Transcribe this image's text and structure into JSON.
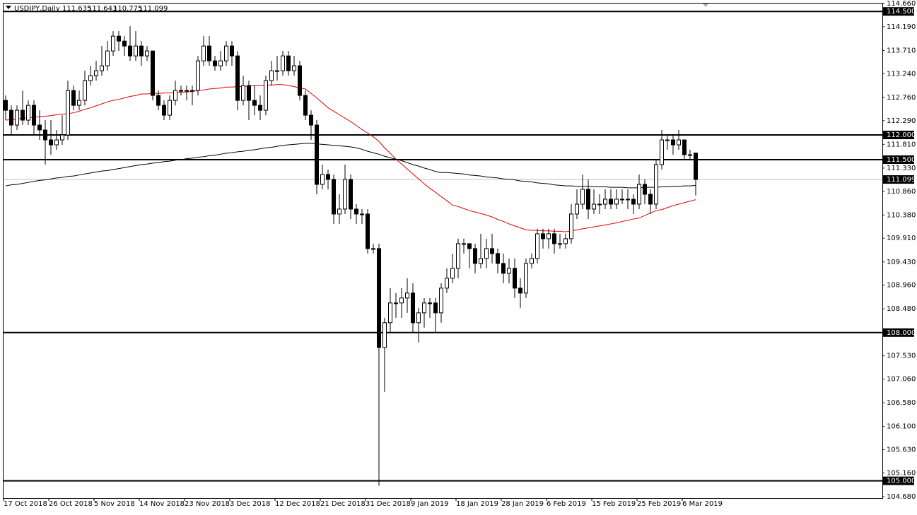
{
  "chart_data": {
    "type": "candlestick",
    "title": "USDJPY,Daily",
    "ylim": [
      104.68,
      114.66
    ],
    "yticks": [
      {
        "value": 114.66,
        "label": "114.660"
      },
      {
        "value": 114.19,
        "label": "114.190"
      },
      {
        "value": 113.71,
        "label": "113.710"
      },
      {
        "value": 113.24,
        "label": "113.240"
      },
      {
        "value": 112.76,
        "label": "112.760"
      },
      {
        "value": 112.29,
        "label": "112.290"
      },
      {
        "value": 111.81,
        "label": "111.810"
      },
      {
        "value": 111.33,
        "label": "111.330"
      },
      {
        "value": 110.86,
        "label": "110.860"
      },
      {
        "value": 110.38,
        "label": "110.380"
      },
      {
        "value": 109.91,
        "label": "109.910"
      },
      {
        "value": 109.43,
        "label": "109.430"
      },
      {
        "value": 108.96,
        "label": "108.960"
      },
      {
        "value": 108.48,
        "label": "108.480"
      },
      {
        "value": 107.53,
        "label": "107.530"
      },
      {
        "value": 107.06,
        "label": "107.060"
      },
      {
        "value": 106.58,
        "label": "106.580"
      },
      {
        "value": 106.1,
        "label": "106.100"
      },
      {
        "value": 105.63,
        "label": "105.630"
      },
      {
        "value": 105.16,
        "label": "105.160"
      },
      {
        "value": 104.68,
        "label": "104.680"
      }
    ],
    "levels": [
      {
        "value": 114.5,
        "label": "114.500"
      },
      {
        "value": 112,
        "label": "112.000"
      },
      {
        "value": 111.5,
        "label": "111.500"
      },
      {
        "value": 108,
        "label": "108.000"
      },
      {
        "value": 105,
        "label": "105.000"
      }
    ],
    "categories": [
      "17 Oct 2018",
      null,
      null,
      null,
      null,
      null,
      null,
      null,
      "26 Oct 2018",
      null,
      null,
      null,
      null,
      null,
      null,
      null,
      "5 Nov 2018",
      null,
      null,
      null,
      null,
      null,
      null,
      null,
      "14 Nov 2018",
      null,
      null,
      null,
      null,
      null,
      null,
      null,
      "23 Nov 2018",
      null,
      null,
      null,
      null,
      null,
      null,
      null,
      "3 Dec 2018",
      null,
      null,
      null,
      null,
      null,
      null,
      null,
      "12 Dec 2018",
      null,
      null,
      null,
      null,
      null,
      null,
      null,
      "21 Dec 2018",
      null,
      null,
      null,
      null,
      null,
      null,
      null,
      "31 Dec 2018",
      null,
      null,
      null,
      null,
      null,
      null,
      null,
      "9 Jan 2019",
      null,
      null,
      null,
      null,
      null,
      null,
      null,
      "18 Jan 2019",
      null,
      null,
      null,
      null,
      null,
      null,
      null,
      "28 Jan 2019",
      null,
      null,
      null,
      null,
      null,
      null,
      null,
      "6 Feb 2019",
      null,
      null,
      null,
      null,
      null,
      null,
      null,
      "15 Feb 2019",
      null,
      null,
      null,
      null,
      null,
      null,
      null,
      "25 Feb 2019",
      null,
      null,
      null,
      null,
      null,
      null,
      null,
      "6 Mar 2019",
      null,
      null
    ],
    "ohlc": [
      [
        112.7,
        112.8,
        112.3,
        112.5
      ],
      [
        112.5,
        112.6,
        112.0,
        112.2
      ],
      [
        112.2,
        112.6,
        112.1,
        112.5
      ],
      [
        112.5,
        112.9,
        112.2,
        112.3
      ],
      [
        112.3,
        112.7,
        112.2,
        112.6
      ],
      [
        112.6,
        112.7,
        112.0,
        112.2
      ],
      [
        112.2,
        112.5,
        111.9,
        112.1
      ],
      [
        112.1,
        112.3,
        111.4,
        111.9
      ],
      [
        111.9,
        112.3,
        111.6,
        111.8
      ],
      [
        111.8,
        112.1,
        111.7,
        111.9
      ],
      [
        111.9,
        112.4,
        111.8,
        112.0
      ],
      [
        112.0,
        113.1,
        111.9,
        112.9
      ],
      [
        112.9,
        113.0,
        112.5,
        112.6
      ],
      [
        112.6,
        112.9,
        112.5,
        112.7
      ],
      [
        112.7,
        113.3,
        112.6,
        113.1
      ],
      [
        113.1,
        113.4,
        113.0,
        113.2
      ],
      [
        113.2,
        113.5,
        113.1,
        113.3
      ],
      [
        113.3,
        113.8,
        113.2,
        113.4
      ],
      [
        113.4,
        113.9,
        113.3,
        113.7
      ],
      [
        113.7,
        114.1,
        113.6,
        114.0
      ],
      [
        114.0,
        114.1,
        113.7,
        113.9
      ],
      [
        113.9,
        114.0,
        113.6,
        113.8
      ],
      [
        113.8,
        114.2,
        113.5,
        113.6
      ],
      [
        113.6,
        114.1,
        113.5,
        113.8
      ],
      [
        113.8,
        113.9,
        113.4,
        113.6
      ],
      [
        113.6,
        113.8,
        113.5,
        113.7
      ],
      [
        113.7,
        113.7,
        112.7,
        112.8
      ],
      [
        112.8,
        112.9,
        112.5,
        112.6
      ],
      [
        112.6,
        112.7,
        112.3,
        112.4
      ],
      [
        112.4,
        112.8,
        112.3,
        112.7
      ],
      [
        112.7,
        113.1,
        112.6,
        112.9
      ],
      [
        112.9,
        113.0,
        112.8,
        112.9
      ],
      [
        112.9,
        113.0,
        112.7,
        112.9
      ],
      [
        112.9,
        113.0,
        112.6,
        112.9
      ],
      [
        112.9,
        113.6,
        112.8,
        113.5
      ],
      [
        113.5,
        114.0,
        113.4,
        113.8
      ],
      [
        113.8,
        114.0,
        113.4,
        113.5
      ],
      [
        113.5,
        113.6,
        113.3,
        113.4
      ],
      [
        113.4,
        113.7,
        113.3,
        113.5
      ],
      [
        113.5,
        113.9,
        113.4,
        113.8
      ],
      [
        113.8,
        113.9,
        113.4,
        113.6
      ],
      [
        113.6,
        113.7,
        112.5,
        112.7
      ],
      [
        112.7,
        113.2,
        112.6,
        113.0
      ],
      [
        113.0,
        113.1,
        112.3,
        112.7
      ],
      [
        112.7,
        113.0,
        112.4,
        112.6
      ],
      [
        112.6,
        112.8,
        112.3,
        112.5
      ],
      [
        112.5,
        113.2,
        112.4,
        113.1
      ],
      [
        113.1,
        113.5,
        113.0,
        113.3
      ],
      [
        113.3,
        113.6,
        113.1,
        113.3
      ],
      [
        113.3,
        113.7,
        113.2,
        113.6
      ],
      [
        113.6,
        113.7,
        113.2,
        113.3
      ],
      [
        113.3,
        113.6,
        113.2,
        113.4
      ],
      [
        113.4,
        113.5,
        112.7,
        112.8
      ],
      [
        112.8,
        112.9,
        112.3,
        112.4
      ],
      [
        112.4,
        112.5,
        111.9,
        112.2
      ],
      [
        112.2,
        112.3,
        110.8,
        111.0
      ],
      [
        111.0,
        111.4,
        110.9,
        111.2
      ],
      [
        111.2,
        111.3,
        110.9,
        111.1
      ],
      [
        111.1,
        111.2,
        110.2,
        110.4
      ],
      [
        110.4,
        110.8,
        110.2,
        110.5
      ],
      [
        110.5,
        111.4,
        110.4,
        111.1
      ],
      [
        111.1,
        111.2,
        110.3,
        110.5
      ],
      [
        110.5,
        110.6,
        110.2,
        110.4
      ],
      [
        110.4,
        110.5,
        110.2,
        110.4
      ],
      [
        110.4,
        110.5,
        109.6,
        109.7
      ],
      [
        109.7,
        109.8,
        109.6,
        109.7
      ],
      [
        109.7,
        109.8,
        104.9,
        107.7
      ],
      [
        107.7,
        108.3,
        106.8,
        108.2
      ],
      [
        108.2,
        108.9,
        108.0,
        108.6
      ],
      [
        108.6,
        108.8,
        108.3,
        108.6
      ],
      [
        108.6,
        108.9,
        108.3,
        108.7
      ],
      [
        108.7,
        109.1,
        108.4,
        108.8
      ],
      [
        108.8,
        109.0,
        108.0,
        108.2
      ],
      [
        108.2,
        108.5,
        107.8,
        108.4
      ],
      [
        108.4,
        108.7,
        108.1,
        108.6
      ],
      [
        108.6,
        108.7,
        108.3,
        108.6
      ],
      [
        108.6,
        108.7,
        108.0,
        108.4
      ],
      [
        108.4,
        109.0,
        108.2,
        108.9
      ],
      [
        108.9,
        109.3,
        108.8,
        109.1
      ],
      [
        109.1,
        109.6,
        109.0,
        109.3
      ],
      [
        109.3,
        109.9,
        109.1,
        109.8
      ],
      [
        109.8,
        109.9,
        109.6,
        109.8
      ],
      [
        109.8,
        109.8,
        109.3,
        109.7
      ],
      [
        109.7,
        109.8,
        109.2,
        109.4
      ],
      [
        109.4,
        110.0,
        109.3,
        109.5
      ],
      [
        109.5,
        109.9,
        109.3,
        109.7
      ],
      [
        109.7,
        110.0,
        109.4,
        109.6
      ],
      [
        109.6,
        109.7,
        109.2,
        109.4
      ],
      [
        109.4,
        109.6,
        109.0,
        109.2
      ],
      [
        109.2,
        109.5,
        109.0,
        109.3
      ],
      [
        109.3,
        109.5,
        108.7,
        108.9
      ],
      [
        108.9,
        109.1,
        108.5,
        108.8
      ],
      [
        108.8,
        109.5,
        108.7,
        109.4
      ],
      [
        109.4,
        109.6,
        109.3,
        109.5
      ],
      [
        109.5,
        110.1,
        109.4,
        110.0
      ],
      [
        110.0,
        110.1,
        109.7,
        109.9
      ],
      [
        109.9,
        110.1,
        109.7,
        110.0
      ],
      [
        110.0,
        110.1,
        109.6,
        109.8
      ],
      [
        109.8,
        110.0,
        109.7,
        109.8
      ],
      [
        109.8,
        110.0,
        109.7,
        109.9
      ],
      [
        109.9,
        110.6,
        109.8,
        110.4
      ],
      [
        110.4,
        110.9,
        110.3,
        110.6
      ],
      [
        110.6,
        111.2,
        110.5,
        110.9
      ],
      [
        110.9,
        111.1,
        110.3,
        110.5
      ],
      [
        110.5,
        110.9,
        110.4,
        110.6
      ],
      [
        110.6,
        110.8,
        110.4,
        110.6
      ],
      [
        110.6,
        110.9,
        110.5,
        110.7
      ],
      [
        110.7,
        110.9,
        110.5,
        110.6
      ],
      [
        110.6,
        110.9,
        110.5,
        110.7
      ],
      [
        110.7,
        110.9,
        110.6,
        110.7
      ],
      [
        110.7,
        110.9,
        110.5,
        110.7
      ],
      [
        110.7,
        110.8,
        110.4,
        110.6
      ],
      [
        110.6,
        111.2,
        110.5,
        111.0
      ],
      [
        111.0,
        111.1,
        110.6,
        110.8
      ],
      [
        110.8,
        110.9,
        110.4,
        110.6
      ],
      [
        110.6,
        111.5,
        110.5,
        111.4
      ],
      [
        111.4,
        112.1,
        111.3,
        111.9
      ],
      [
        111.9,
        112.0,
        111.7,
        111.9
      ],
      [
        111.9,
        112.0,
        111.6,
        111.8
      ],
      [
        111.8,
        112.1,
        111.7,
        111.9
      ],
      [
        111.9,
        111.9,
        111.5,
        111.6
      ],
      [
        111.6,
        111.7,
        111.5,
        111.6
      ],
      [
        111.635,
        111.643,
        110.775,
        111.099
      ]
    ],
    "lines": [
      {
        "color": "#e00000",
        "values": [
          112.3,
          112.31,
          112.32,
          112.34,
          112.35,
          112.36,
          112.37,
          112.38,
          112.39,
          112.41,
          112.42,
          112.43,
          112.45,
          112.48,
          112.52,
          112.55,
          112.59,
          112.63,
          112.67,
          112.7,
          112.72,
          112.75,
          112.78,
          112.8,
          112.83,
          112.83,
          112.84,
          112.84,
          112.85,
          112.85,
          112.86,
          112.87,
          112.87,
          112.88,
          112.9,
          112.91,
          112.93,
          112.94,
          112.95,
          112.97,
          112.97,
          112.98,
          112.98,
          112.99,
          113.0,
          113.0,
          113.01,
          113.01,
          113.02,
          113.02,
          113.0,
          112.98,
          112.95,
          112.93,
          112.84,
          112.75,
          112.65,
          112.55,
          112.48,
          112.41,
          112.34,
          112.27,
          112.19,
          112.11,
          112.04,
          111.96,
          111.87,
          111.74,
          111.63,
          111.51,
          111.41,
          111.31,
          111.21,
          111.11,
          111.01,
          110.92,
          110.84,
          110.75,
          110.67,
          110.58,
          110.55,
          110.51,
          110.47,
          110.44,
          110.41,
          110.38,
          110.34,
          110.29,
          110.25,
          110.2,
          110.16,
          110.12,
          110.08,
          110.07,
          110.07,
          110.06,
          110.06,
          110.05,
          110.05,
          110.04,
          110.06,
          110.08,
          110.1,
          110.12,
          110.14,
          110.16,
          110.18,
          110.2,
          110.22,
          110.25,
          110.27,
          110.3,
          110.32,
          110.37,
          110.42,
          110.47,
          110.49,
          110.53,
          110.57,
          110.6,
          110.63,
          110.66,
          110.69
        ]
      },
      {
        "color": "#000000",
        "values": [
          110.97,
          110.99,
          111.0,
          111.02,
          111.04,
          111.06,
          111.08,
          111.09,
          111.11,
          111.13,
          111.14,
          111.16,
          111.17,
          111.19,
          111.21,
          111.23,
          111.25,
          111.27,
          111.28,
          111.3,
          111.32,
          111.34,
          111.36,
          111.38,
          111.4,
          111.41,
          111.43,
          111.44,
          111.46,
          111.47,
          111.49,
          111.5,
          111.52,
          111.53,
          111.55,
          111.56,
          111.58,
          111.59,
          111.61,
          111.63,
          111.64,
          111.66,
          111.67,
          111.69,
          111.7,
          111.72,
          111.74,
          111.75,
          111.77,
          111.79,
          111.8,
          111.81,
          111.82,
          111.83,
          111.83,
          111.82,
          111.81,
          111.8,
          111.79,
          111.78,
          111.77,
          111.76,
          111.74,
          111.71,
          111.67,
          111.64,
          111.61,
          111.57,
          111.54,
          111.51,
          111.48,
          111.44,
          111.4,
          111.37,
          111.33,
          111.3,
          111.26,
          111.24,
          111.24,
          111.23,
          111.22,
          111.21,
          111.19,
          111.18,
          111.17,
          111.15,
          111.14,
          111.13,
          111.11,
          111.1,
          111.09,
          111.07,
          111.06,
          111.05,
          111.03,
          111.02,
          111.01,
          110.99,
          110.98,
          110.97,
          110.97,
          110.96,
          110.96,
          110.96,
          110.95,
          110.95,
          110.95,
          110.94,
          110.94,
          110.94,
          110.93,
          110.93,
          110.93,
          110.94,
          110.94,
          110.94,
          110.95,
          110.95,
          110.96,
          110.96,
          110.97,
          110.97,
          110.98
        ]
      }
    ]
  }
}
